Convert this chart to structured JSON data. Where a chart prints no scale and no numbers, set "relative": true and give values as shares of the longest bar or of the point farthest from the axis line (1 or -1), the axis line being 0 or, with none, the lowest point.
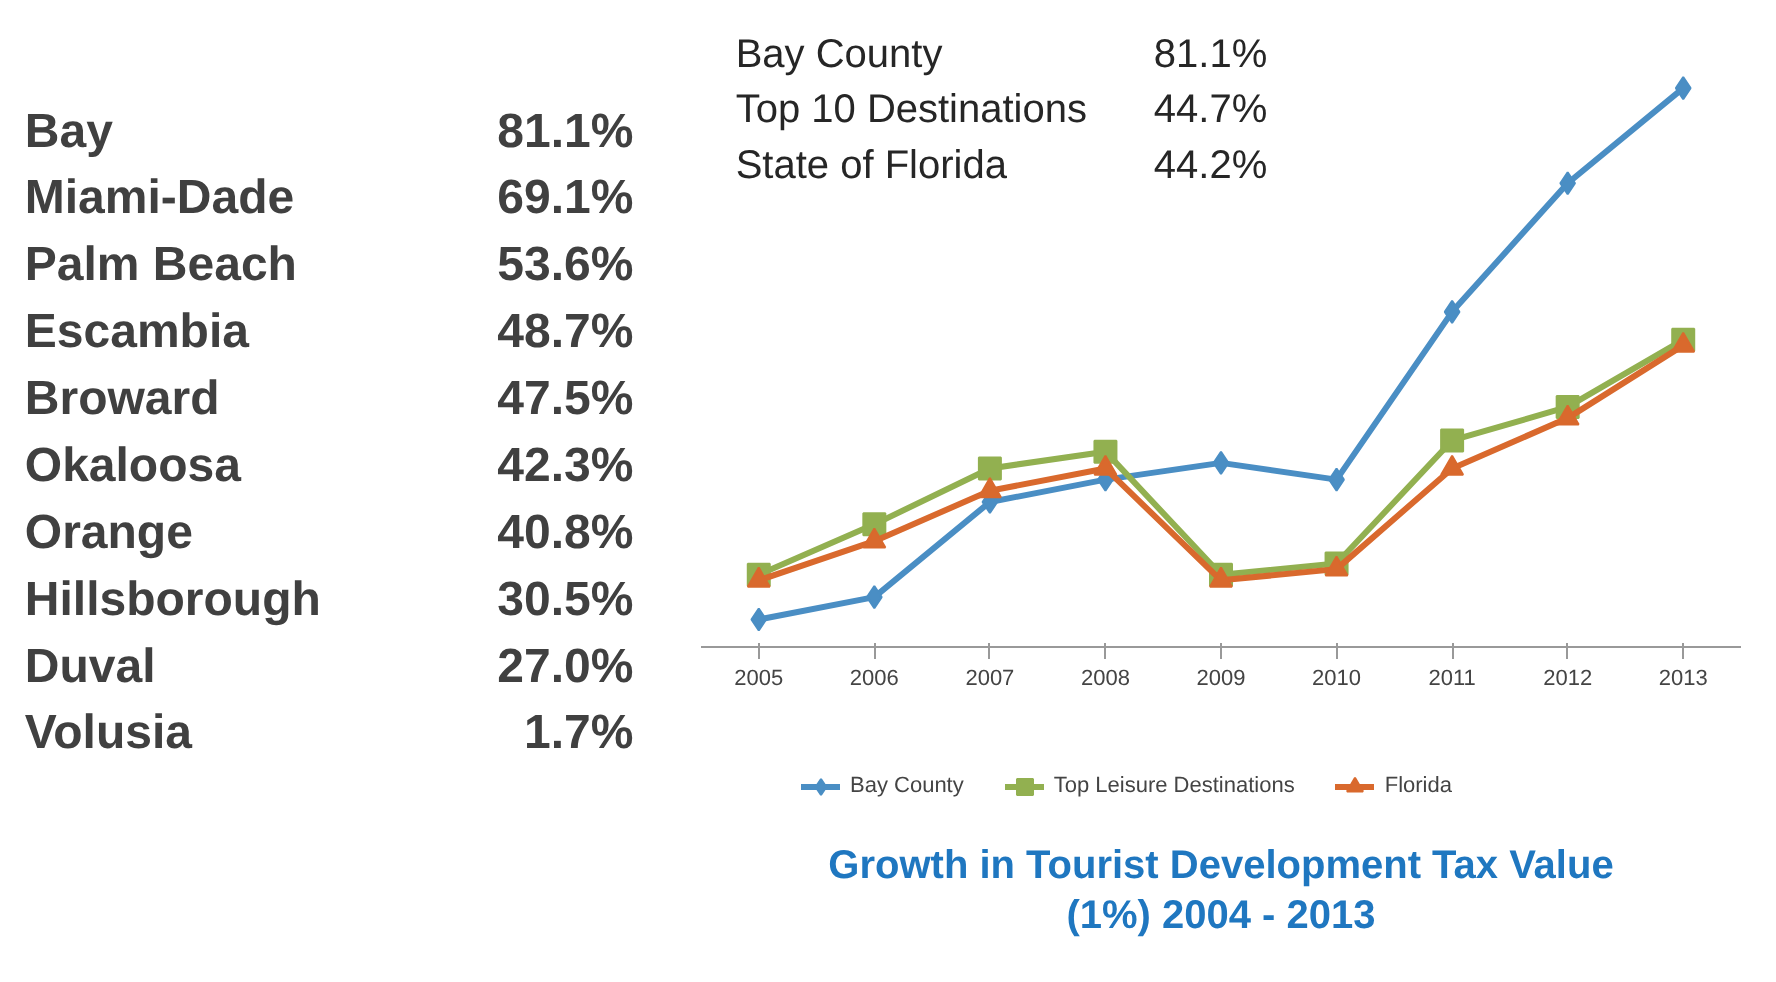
{
  "chart_data": [
    {
      "type": "other",
      "categories": [
        "Bay",
        "Miami-Dade",
        "Palm Beach",
        "Escambia",
        "Broward",
        "Okaloosa",
        "Orange",
        "Hillsborough",
        "Duval",
        "Volusia"
      ],
      "value_labels": [
        "81.1%",
        "69.1%",
        "53.6%",
        "48.7%",
        "47.5%",
        "42.3%",
        "40.8%",
        "30.5%",
        "27.0%",
        "1.7%"
      ]
    },
    {
      "type": "line",
      "title": "Growth in Tourist Development Tax Value (1%) 2004 - 2013",
      "relative": true,
      "categories": [
        "2005",
        "2006",
        "2007",
        "2008",
        "2009",
        "2010",
        "2011",
        "2012",
        "2013"
      ],
      "series": [
        {
          "name": "Bay County",
          "color": "#4a8ec4",
          "marker": "diamond",
          "values": [
            0.05,
            0.09,
            0.26,
            0.3,
            0.33,
            0.3,
            0.6,
            0.83,
            1.0
          ]
        },
        {
          "name": "Top Leisure Destinations",
          "color": "#92b050",
          "marker": "square",
          "values": [
            0.13,
            0.22,
            0.32,
            0.35,
            0.13,
            0.15,
            0.37,
            0.43,
            0.55
          ]
        },
        {
          "name": "Florida",
          "color": "#d9692d",
          "marker": "triangle",
          "values": [
            0.12,
            0.19,
            0.28,
            0.32,
            0.12,
            0.14,
            0.32,
            0.41,
            0.54
          ]
        }
      ],
      "annotations": [
        "Bay County",
        "81.1%",
        "Top 10 Destinations",
        "44.7%",
        "State of Florida",
        "44.2%"
      ],
      "legend": "bottom",
      "grid": false,
      "line_style": "solid"
    }
  ]
}
